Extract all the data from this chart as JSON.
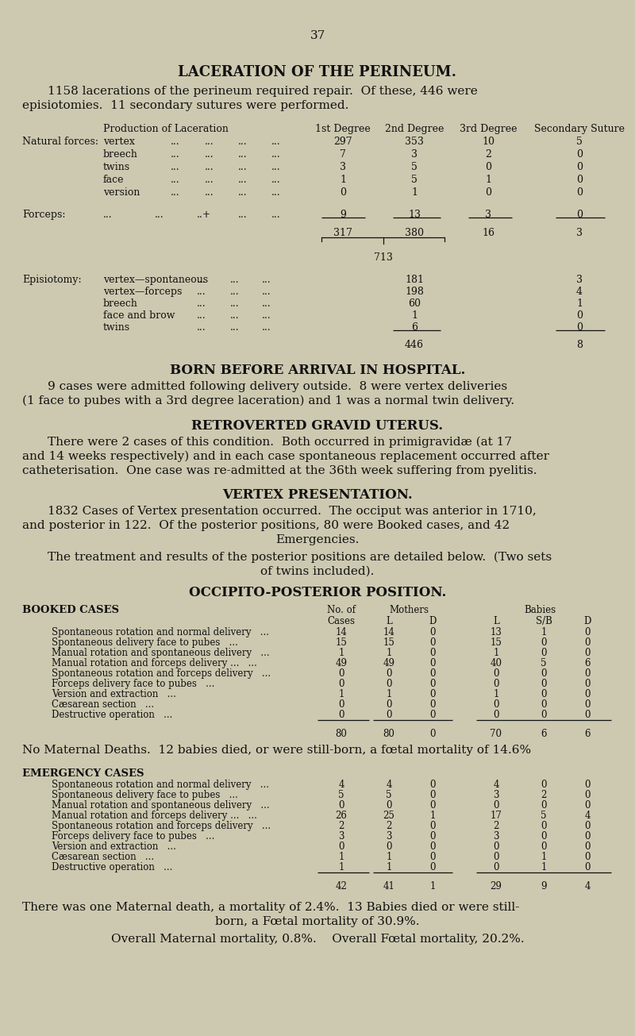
{
  "bg_color": "#cdc9b0",
  "text_color": "#111111",
  "page_number": "37",
  "title": "LACERATION OF THE PERINEUM.",
  "section2_title": "BORN BEFORE ARRIVAL IN HOSPITAL.",
  "section3_title": "RETROVERTED GRAVID UTERUS.",
  "section4_title": "VERTEX PRESENTATION.",
  "section5_title": "OCCIPITO-POSTERIOR POSITION.",
  "booked_label": "BOOKED CASES",
  "emergency_label": "EMERGENCY CASES",
  "booked_note": "No Maternal Deaths.  12 babies died, or were still-born, a fœtal mortality of 14.6%",
  "booked_rows": [
    [
      "Spontaneous rotation and normal delivery",
      "14",
      "14",
      "0",
      "13",
      "1",
      "0"
    ],
    [
      "Spontaneous delivery face to pubes",
      "15",
      "15",
      "0",
      "15",
      "0",
      "0"
    ],
    [
      "Manual rotation and spontaneous delivery",
      "1",
      "1",
      "0",
      "1",
      "0",
      "0"
    ],
    [
      "Manual rotation and forceps delivery ...",
      "49",
      "49",
      "0",
      "40",
      "5",
      "6"
    ],
    [
      "Spontaneous rotation and forceps delivery",
      "0",
      "0",
      "0",
      "0",
      "0",
      "0"
    ],
    [
      "Forceps delivery face to pubes",
      "0",
      "0",
      "0",
      "0",
      "0",
      "0"
    ],
    [
      "Version and extraction",
      "1",
      "1",
      "0",
      "1",
      "0",
      "0"
    ],
    [
      "Cæsarean section",
      "0",
      "0",
      "0",
      "0",
      "0",
      "0"
    ],
    [
      "Destructive operation",
      "0",
      "0",
      "0",
      "0",
      "0",
      "0"
    ]
  ],
  "booked_totals": [
    "80",
    "80",
    "0",
    "70",
    "6",
    "6"
  ],
  "emergency_rows": [
    [
      "Spontaneous rotation and normal delivery",
      "4",
      "4",
      "0",
      "4",
      "0",
      "0"
    ],
    [
      "Spontaneous delivery face to pubes",
      "5",
      "5",
      "0",
      "3",
      "2",
      "0"
    ],
    [
      "Manual rotation and spontaneous delivery",
      "0",
      "0",
      "0",
      "0",
      "0",
      "0"
    ],
    [
      "Manual rotation and forceps delivery ...",
      "26",
      "25",
      "1",
      "17",
      "5",
      "4"
    ],
    [
      "Spontaneous rotation and forceps delivery",
      "2",
      "2",
      "0",
      "2",
      "0",
      "0"
    ],
    [
      "Forceps delivery face to pubes",
      "3",
      "3",
      "0",
      "3",
      "0",
      "0"
    ],
    [
      "Version and extraction",
      "0",
      "0",
      "0",
      "0",
      "0",
      "0"
    ],
    [
      "Cæsarean section",
      "1",
      "1",
      "0",
      "0",
      "1",
      "0"
    ],
    [
      "Destructive operation",
      "1",
      "1",
      "0",
      "0",
      "1",
      "0"
    ]
  ],
  "emergency_totals": [
    "42",
    "41",
    "1",
    "29",
    "9",
    "4"
  ]
}
